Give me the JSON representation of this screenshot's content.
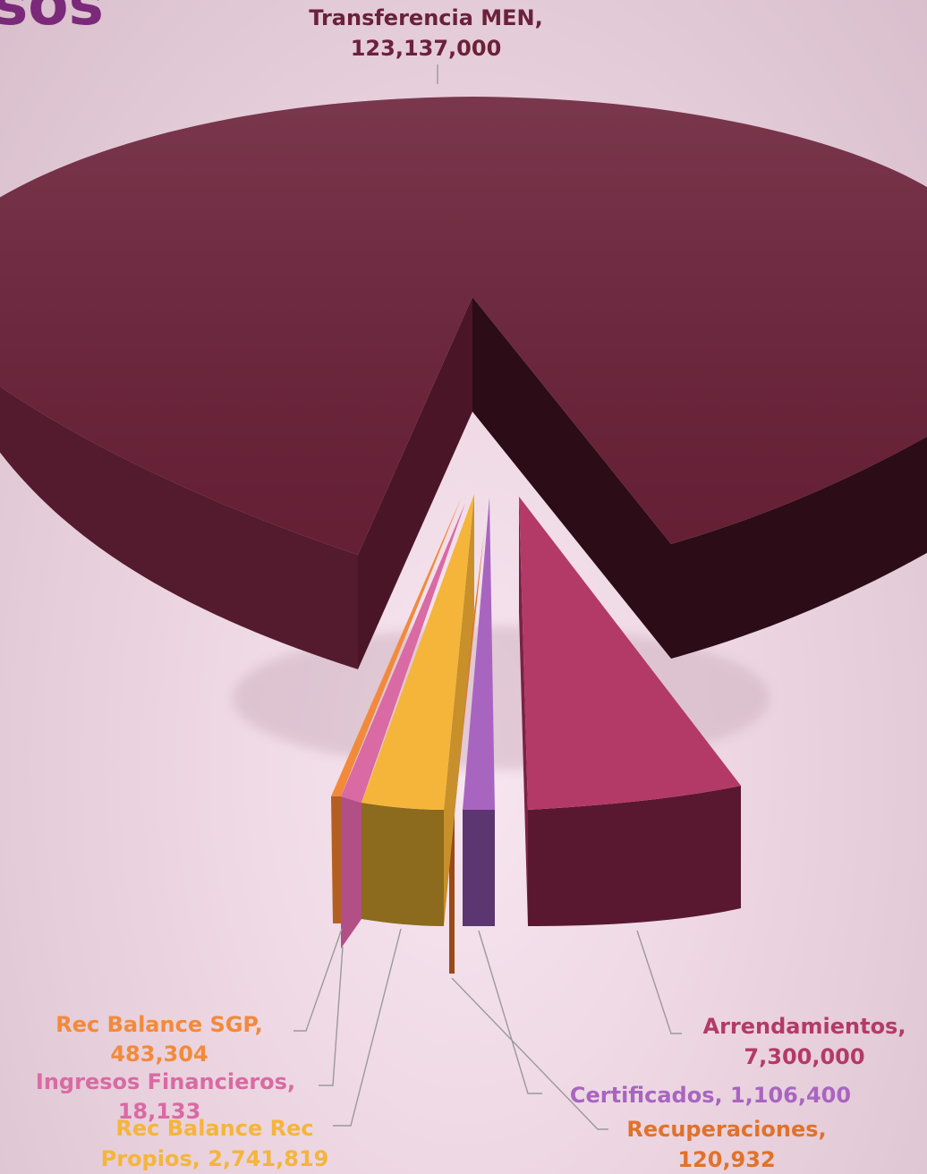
{
  "page": {
    "title_fragment": "sos",
    "title_color": "#7b2a7a"
  },
  "chart_data": {
    "type": "pie",
    "style": "3d exploded",
    "legend": "none",
    "title": "",
    "slices": [
      {
        "name": "Transferencia MEN",
        "value": 123137000,
        "value_label": "123,137,000",
        "color": "#6b2139"
      },
      {
        "name": "Arrendamientos",
        "value": 7300000,
        "value_label": "7,300,000",
        "color": "#b33a67"
      },
      {
        "name": "Certificados",
        "value": 1106400,
        "value_label": "1,106,400",
        "color": "#a865c0"
      },
      {
        "name": "Recuperaciones",
        "value": 120932,
        "value_label": "120,932",
        "color": "#e0722a"
      },
      {
        "name": "Rec Balance Rec Propios",
        "value": 2741819,
        "value_label": "2,741,819",
        "color": "#f4b53a"
      },
      {
        "name": "Ingresos Financieros",
        "value": 18133,
        "value_label": "18,133",
        "color": "#d96aa3"
      },
      {
        "name": "Rec Balance SGP",
        "value": 483304,
        "value_label": "483,304",
        "color": "#f28a3c"
      }
    ],
    "labels": {
      "transferencia_line1": "Transferencia MEN,",
      "transferencia_line2": "123,137,000",
      "arrendamientos_line1": "Arrendamientos,",
      "arrendamientos_line2": "7,300,000",
      "certificados_line1": "Certificados, 1,106,400",
      "recuperaciones_line1": "Recuperaciones,",
      "recuperaciones_line2": "120,932",
      "recbalancerec_line1": "Rec Balance Rec",
      "recbalancerec_line2": "Propios, 2,741,819",
      "ingresos_line1": "Ingresos Financieros,",
      "ingresos_line2": "18,133",
      "sgp_line1": "Rec Balance SGP,",
      "sgp_line2": "483,304"
    },
    "label_colors": {
      "transferencia": "#6b2139",
      "arrendamientos": "#b33a67",
      "certificados": "#a865c0",
      "recuperaciones": "#e0722a",
      "recbalancerec": "#f4b53a",
      "ingresos": "#d96aa3",
      "sgp": "#f28a3c"
    }
  }
}
